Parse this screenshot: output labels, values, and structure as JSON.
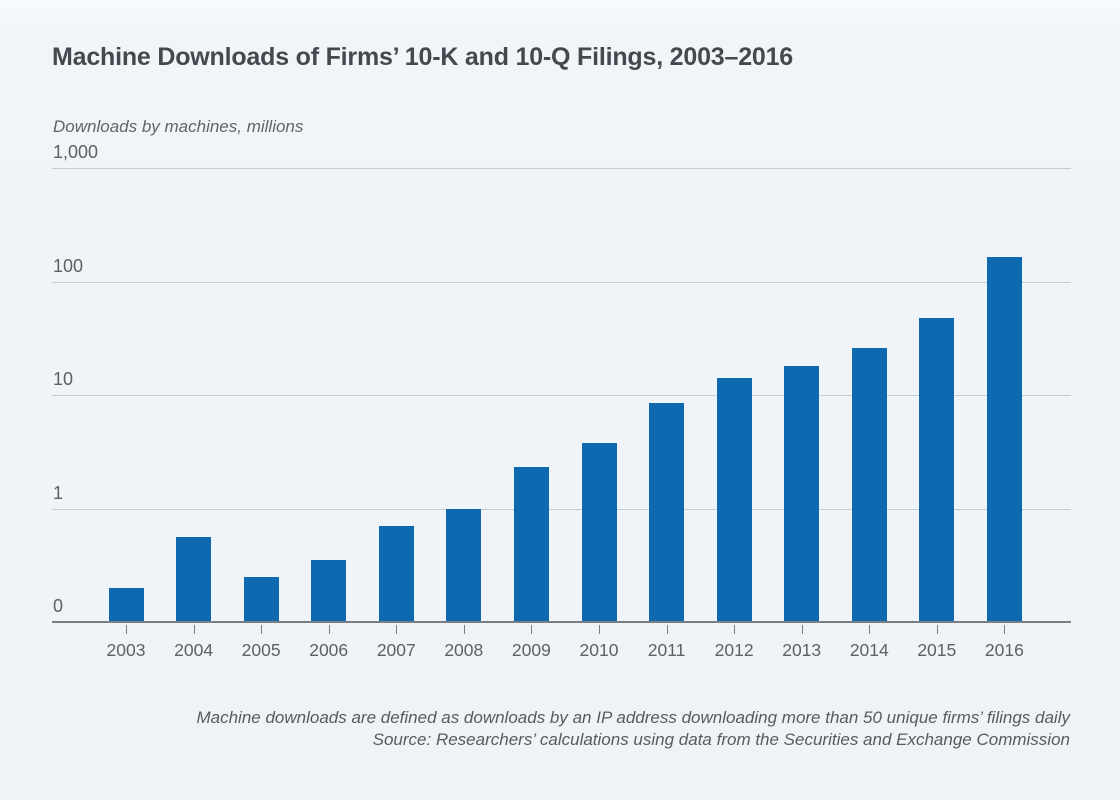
{
  "chart": {
    "title": "Machine Downloads of Firms’ 10-K and 10-Q Filings, 2003–2016",
    "y_axis_title": "Downloads by machines, millions",
    "note": "Machine downloads are defined as downloads by an IP address downloading more than 50 unique firms’ filings daily",
    "source": "Source: Researchers’ calculations using data from the Securities and Exchange Commission"
  },
  "chart_data": {
    "type": "bar",
    "title": "Machine Downloads of Firms’ 10-K and 10-Q Filings, 2003–2016",
    "xlabel": "",
    "ylabel": "Downloads by machines, millions",
    "categories": [
      "2003",
      "2004",
      "2005",
      "2006",
      "2007",
      "2008",
      "2009",
      "2010",
      "2011",
      "2012",
      "2013",
      "2014",
      "2015",
      "2016"
    ],
    "values": [
      0.3,
      0.75,
      0.4,
      0.55,
      0.85,
      1.0,
      2.3,
      3.8,
      8.5,
      14,
      18,
      26,
      48,
      165
    ],
    "y_scale": "logarithmic above 1, linear 0 to 1",
    "y_ticks": [
      {
        "label": "1,000",
        "value": 1000
      },
      {
        "label": "100",
        "value": 100
      },
      {
        "label": "10",
        "value": 10
      },
      {
        "label": "1",
        "value": 1
      },
      {
        "label": "0",
        "value": 0
      }
    ],
    "ylim": [
      0,
      1000
    ],
    "grid": "horizontal",
    "legend": "none",
    "bar_color": "#0d6ab1",
    "gridline_color": "#c7ccd3",
    "axis_color": "#797e85"
  }
}
